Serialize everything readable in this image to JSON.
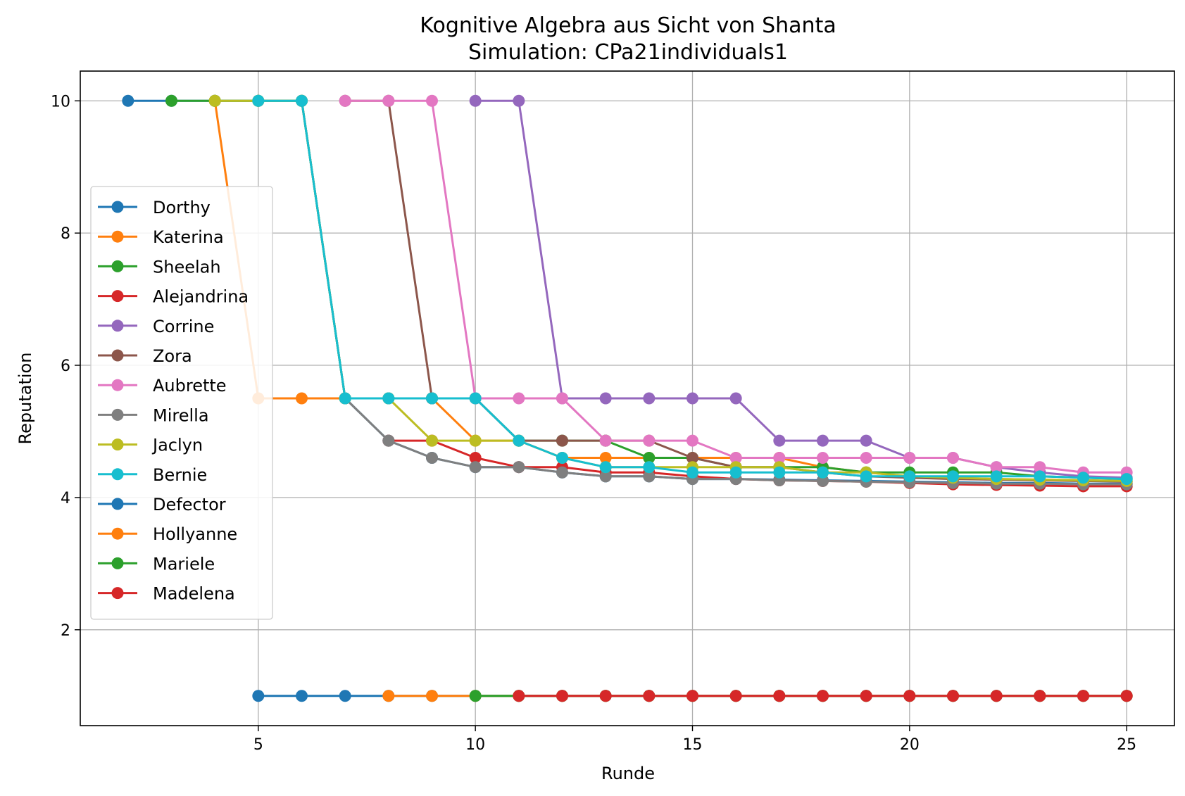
{
  "chart_data": {
    "type": "line",
    "title": "Kognitive Algebra aus Sicht von Shanta",
    "subtitle": "Simulation: CPa21individuals1",
    "xlabel": "Runde",
    "ylabel": "Reputation",
    "xlim": [
      0.9,
      26.1
    ],
    "ylim": [
      0.55,
      10.45
    ],
    "xticks": [
      5,
      10,
      15,
      20,
      25
    ],
    "yticks": [
      2,
      4,
      6,
      8,
      10
    ],
    "grid": true,
    "legend_position": "center-left",
    "series": [
      {
        "name": "Dorthy",
        "color": "#1f77b4",
        "x": [
          2,
          3,
          4,
          5,
          6,
          7,
          8,
          9,
          10,
          11,
          12,
          13,
          14,
          15,
          16,
          17,
          18,
          19,
          20,
          21,
          22,
          23,
          24,
          25
        ],
        "y": [
          10,
          10,
          10,
          10,
          10,
          5.5,
          4.86,
          4.6,
          4.46,
          4.46,
          4.38,
          4.32,
          4.32,
          4.28,
          4.28,
          4.27,
          4.26,
          4.25,
          4.24,
          4.23,
          4.22,
          4.22,
          4.21,
          4.21
        ]
      },
      {
        "name": "Katerina",
        "color": "#ff7f0e",
        "x": [
          4,
          5,
          6,
          7,
          8,
          9,
          10,
          11,
          12,
          13,
          14,
          15,
          16,
          17,
          18,
          19,
          20,
          21,
          22,
          23,
          24,
          25
        ],
        "y": [
          10,
          5.5,
          5.5,
          5.5,
          5.5,
          5.5,
          4.86,
          4.86,
          4.6,
          4.6,
          4.6,
          4.6,
          4.6,
          4.6,
          4.46,
          4.38,
          4.32,
          4.3,
          4.28,
          4.27,
          4.26,
          4.25
        ]
      },
      {
        "name": "Sheelah",
        "color": "#2ca02c",
        "x": [
          3,
          4,
          5,
          6,
          7,
          8,
          9,
          10,
          11,
          12,
          13,
          14,
          15,
          16,
          17,
          18,
          19,
          20,
          21,
          22,
          23,
          24,
          25
        ],
        "y": [
          10,
          10,
          10,
          10,
          5.5,
          5.5,
          5.5,
          5.5,
          4.86,
          4.86,
          4.86,
          4.6,
          4.6,
          4.46,
          4.46,
          4.46,
          4.38,
          4.38,
          4.38,
          4.38,
          4.32,
          4.3,
          4.28
        ]
      },
      {
        "name": "Alejandrina",
        "color": "#d62728",
        "x": [
          8,
          9,
          10,
          11,
          12,
          13,
          14,
          15,
          16,
          17,
          18,
          19,
          20,
          21,
          22,
          23,
          24,
          25
        ],
        "y": [
          4.86,
          4.86,
          4.6,
          4.46,
          4.46,
          4.38,
          4.38,
          4.32,
          4.28,
          4.26,
          4.25,
          4.24,
          4.22,
          4.2,
          4.19,
          4.18,
          4.17,
          4.17
        ]
      },
      {
        "name": "Corrine",
        "color": "#9467bd",
        "x": [
          10,
          11,
          12,
          13,
          14,
          15,
          16,
          17,
          18,
          19,
          20,
          21,
          22,
          23,
          24,
          25
        ],
        "y": [
          10,
          10,
          5.5,
          5.5,
          5.5,
          5.5,
          5.5,
          4.86,
          4.86,
          4.86,
          4.6,
          4.6,
          4.46,
          4.38,
          4.32,
          4.3
        ]
      },
      {
        "name": "Zora",
        "color": "#8c564b",
        "x": [
          7,
          8,
          9,
          10,
          11,
          12,
          13,
          14,
          15,
          16,
          17,
          18,
          19,
          20,
          21,
          22,
          23,
          24,
          25
        ],
        "y": [
          10,
          10,
          5.5,
          5.5,
          4.86,
          4.86,
          4.86,
          4.86,
          4.6,
          4.46,
          4.46,
          4.38,
          4.32,
          4.3,
          4.28,
          4.27,
          4.26,
          4.25,
          4.24
        ]
      },
      {
        "name": "Aubrette",
        "color": "#e377c2",
        "x": [
          7,
          8,
          9,
          10,
          11,
          12,
          13,
          14,
          15,
          16,
          17,
          18,
          19,
          20,
          21,
          22,
          23,
          24,
          25
        ],
        "y": [
          10,
          10,
          10,
          5.5,
          5.5,
          5.5,
          4.86,
          4.86,
          4.86,
          4.6,
          4.6,
          4.6,
          4.6,
          4.6,
          4.6,
          4.46,
          4.46,
          4.38,
          4.38
        ]
      },
      {
        "name": "Mirella",
        "color": "#7f7f7f",
        "x": [
          6,
          7,
          8,
          9,
          10,
          11,
          12,
          13,
          14,
          15,
          16,
          17,
          18,
          19,
          20,
          21,
          22,
          23,
          24,
          25
        ],
        "y": [
          10,
          5.5,
          4.86,
          4.6,
          4.46,
          4.46,
          4.38,
          4.32,
          4.32,
          4.28,
          4.28,
          4.26,
          4.25,
          4.24,
          4.23,
          4.22,
          4.21,
          4.21,
          4.2,
          4.2
        ]
      },
      {
        "name": "Jaclyn",
        "color": "#bcbd22",
        "x": [
          4,
          5,
          6,
          7,
          8,
          9,
          10,
          11,
          12,
          13,
          14,
          15,
          16,
          17,
          18,
          19,
          20,
          21,
          22,
          23,
          24,
          25
        ],
        "y": [
          10,
          10,
          10,
          5.5,
          5.5,
          4.86,
          4.86,
          4.86,
          4.6,
          4.46,
          4.46,
          4.46,
          4.46,
          4.46,
          4.38,
          4.38,
          4.32,
          4.3,
          4.28,
          4.27,
          4.26,
          4.25
        ]
      },
      {
        "name": "Bernie",
        "color": "#17becf",
        "x": [
          5,
          6,
          7,
          8,
          9,
          10,
          11,
          12,
          13,
          14,
          15,
          16,
          17,
          18,
          19,
          20,
          21,
          22,
          23,
          24,
          25
        ],
        "y": [
          10,
          10,
          5.5,
          5.5,
          5.5,
          5.5,
          4.86,
          4.6,
          4.46,
          4.46,
          4.38,
          4.38,
          4.38,
          4.38,
          4.32,
          4.32,
          4.32,
          4.32,
          4.32,
          4.3,
          4.28
        ]
      },
      {
        "name": "Defector",
        "color": "#1f77b4",
        "x": [
          5,
          6,
          7,
          8,
          9,
          10,
          11,
          12,
          13,
          14,
          15,
          16,
          17,
          18,
          19,
          20,
          21,
          22,
          23,
          24,
          25
        ],
        "y": [
          1,
          1,
          1,
          1,
          1,
          1,
          1,
          1,
          1,
          1,
          1,
          1,
          1,
          1,
          1,
          1,
          1,
          1,
          1,
          1,
          1
        ]
      },
      {
        "name": "Hollyanne",
        "color": "#ff7f0e",
        "x": [
          8,
          9,
          10,
          11,
          12,
          13,
          14,
          15,
          16,
          17,
          18,
          19,
          20,
          21,
          22,
          23,
          24,
          25
        ],
        "y": [
          1,
          1,
          1,
          1,
          1,
          1,
          1,
          1,
          1,
          1,
          1,
          1,
          1,
          1,
          1,
          1,
          1,
          1
        ]
      },
      {
        "name": "Mariele",
        "color": "#2ca02c",
        "x": [
          10,
          11,
          12,
          13,
          14,
          15,
          16,
          17,
          18,
          19,
          20,
          21,
          22,
          23,
          24,
          25
        ],
        "y": [
          1,
          1,
          1,
          1,
          1,
          1,
          1,
          1,
          1,
          1,
          1,
          1,
          1,
          1,
          1,
          1
        ]
      },
      {
        "name": "Madelena",
        "color": "#d62728",
        "x": [
          11,
          12,
          13,
          14,
          15,
          16,
          17,
          18,
          19,
          20,
          21,
          22,
          23,
          24,
          25
        ],
        "y": [
          1,
          1,
          1,
          1,
          1,
          1,
          1,
          1,
          1,
          1,
          1,
          1,
          1,
          1,
          1
        ]
      }
    ]
  }
}
